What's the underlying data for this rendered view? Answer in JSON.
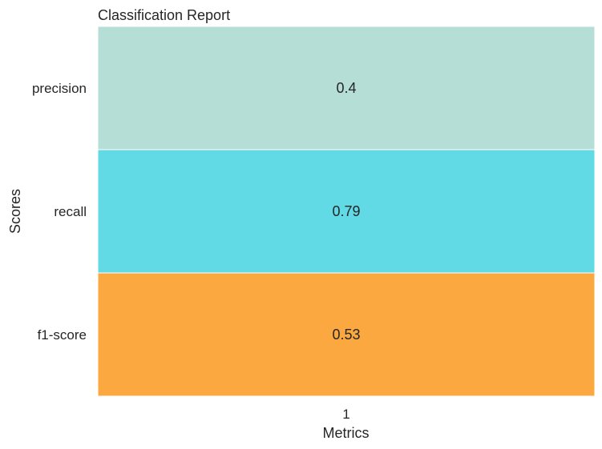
{
  "chart_data": {
    "type": "heatmap",
    "title": "Classification Report",
    "xlabel": "Metrics",
    "ylabel": "Scores",
    "x_categories": [
      "1"
    ],
    "y_categories": [
      "precision",
      "recall",
      "f1-score"
    ],
    "values": [
      [
        0.4
      ],
      [
        0.79
      ],
      [
        0.53
      ]
    ],
    "cell_labels": [
      [
        "0.4"
      ],
      [
        "0.79"
      ],
      [
        "0.53"
      ]
    ],
    "cell_colors": [
      "#b5ded6",
      "#61dae5",
      "#fca840"
    ],
    "grid": false,
    "legend": "none"
  }
}
